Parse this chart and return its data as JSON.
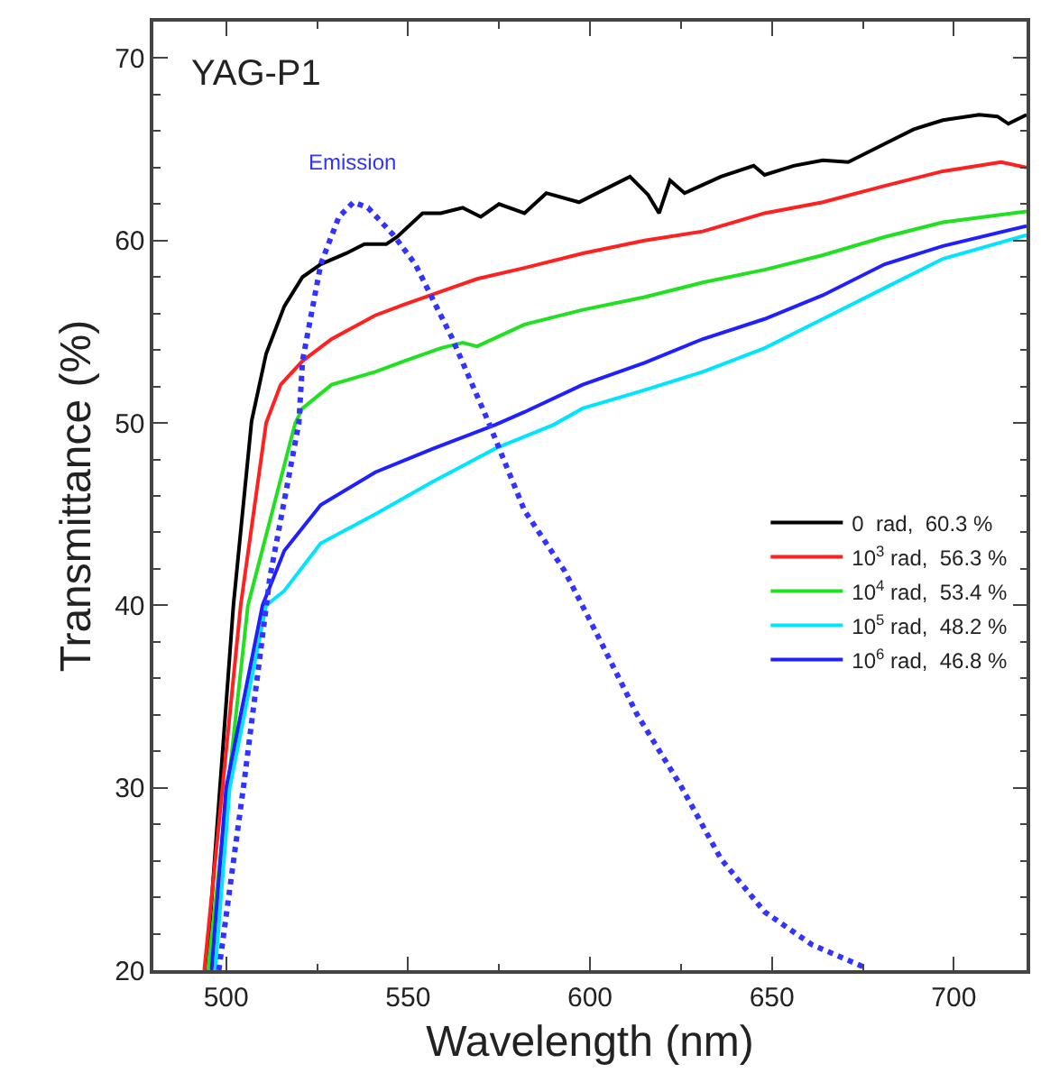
{
  "chart_data": {
    "type": "line",
    "xlabel": "Wavelength (nm)",
    "ylabel": "Transmittance (%)",
    "xlim": [
      480,
      720
    ],
    "xticks": [
      500,
      550,
      600,
      650,
      700
    ],
    "ylim": [
      20,
      72
    ],
    "yticks": [
      20,
      30,
      40,
      50,
      60,
      70
    ],
    "legend": "bottom right",
    "marker": "none",
    "line_style": "solid",
    "annotations": [
      "YAG-P1"
    ],
    "series": [
      {
        "name": "0  rad,  60.3 %",
        "color": "#000000",
        "x": [
          494.6,
          502,
          507,
          511,
          516,
          521,
          526,
          533,
          538,
          544,
          547,
          554,
          559,
          565,
          570,
          575,
          582,
          588,
          597,
          602,
          611,
          616,
          619,
          622,
          626,
          636,
          645,
          648,
          656,
          664,
          671,
          681,
          689,
          697,
          707,
          712,
          715,
          720
        ],
        "values": [
          20,
          40,
          50.1,
          53.8,
          56.4,
          58.0,
          58.7,
          59.3,
          59.8,
          59.8,
          60.2,
          61.5,
          61.5,
          61.8,
          61.3,
          62.0,
          61.5,
          62.6,
          62.1,
          62.6,
          63.5,
          62.5,
          61.5,
          63.3,
          62.6,
          63.5,
          64.1,
          63.6,
          64.1,
          64.4,
          64.3,
          65.3,
          66.1,
          66.6,
          66.9,
          66.8,
          66.4,
          66.9
        ]
      },
      {
        "name": "10$^{3}$ rad,  56.3 %",
        "color": "#ff2020",
        "x": [
          494,
          504,
          511,
          515,
          521,
          529,
          541,
          549,
          559,
          569,
          582,
          598,
          615,
          631,
          648,
          664,
          681,
          697,
          713,
          720
        ],
        "values": [
          20,
          40,
          50,
          52.1,
          53.4,
          54.6,
          55.9,
          56.5,
          57.2,
          57.9,
          58.5,
          59.3,
          60.0,
          60.5,
          61.5,
          62.1,
          63.0,
          63.8,
          64.3,
          64.0
        ]
      },
      {
        "name": "10$^{4}$ rad,  53.4 %",
        "color": "#20e020",
        "x": [
          495,
          506,
          519,
          521,
          529,
          541,
          549,
          559,
          565,
          569,
          582,
          598,
          615,
          631,
          648,
          664,
          681,
          697,
          720
        ],
        "values": [
          20,
          40,
          50,
          50.8,
          52.1,
          52.8,
          53.4,
          54.1,
          54.4,
          54.2,
          55.4,
          56.2,
          56.9,
          57.7,
          58.4,
          59.2,
          60.2,
          61.0,
          61.6
        ]
      },
      {
        "name": "10$^{5}$ rad,  48.2 %",
        "color": "#00e5ff",
        "x": [
          497,
          501,
          511,
          516,
          526,
          541,
          557,
          574,
          590,
          598,
          615,
          631,
          648,
          664,
          681,
          697,
          720
        ],
        "values": [
          20,
          30,
          40,
          40.8,
          43.4,
          45.0,
          46.8,
          48.6,
          49.9,
          50.8,
          51.8,
          52.8,
          54.1,
          55.7,
          57.4,
          59.0,
          60.3
        ]
      },
      {
        "name": "10$^{6}$ rad,  46.8 %",
        "color": "#2020ff",
        "x": [
          496,
          500,
          510,
          516,
          526,
          541,
          557,
          574,
          582,
          598,
          615,
          631,
          648,
          664,
          681,
          697,
          720
        ],
        "values": [
          20,
          30,
          40,
          43.0,
          45.5,
          47.3,
          48.6,
          49.9,
          50.6,
          52.1,
          53.3,
          54.6,
          55.7,
          57.0,
          58.7,
          59.7,
          60.8
        ]
      },
      {
        "name": "Emission",
        "color": "#3333ff",
        "line_style": "dotted",
        "x": [
          498,
          505,
          512,
          520,
          521,
          526,
          531,
          535,
          539,
          546,
          552,
          562,
          572,
          582,
          593,
          603,
          613,
          625,
          636,
          648,
          661,
          675
        ],
        "values": [
          20,
          30.4,
          41.5,
          50.0,
          53.4,
          58.7,
          61.3,
          62.1,
          61.8,
          60.3,
          58.7,
          54.7,
          50.1,
          45.2,
          41.9,
          38.0,
          34.0,
          30.1,
          26.1,
          23.2,
          21.4,
          20.2
        ]
      }
    ]
  }
}
